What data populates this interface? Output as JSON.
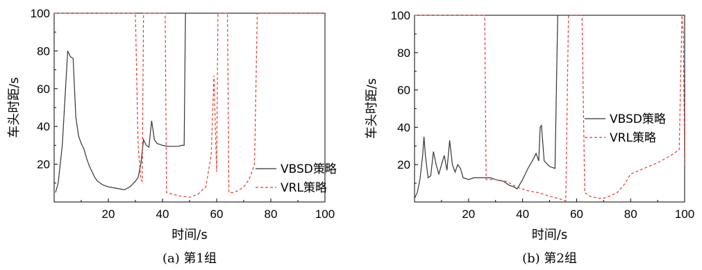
{
  "colors": {
    "vbsd": "#333333",
    "vrl": "#e8392f",
    "axis": "#000000"
  },
  "chart_data": [
    {
      "type": "line",
      "caption": "(a) 第1组",
      "xlabel": "时间/s",
      "ylabel": "车头时距/s",
      "xlim": [
        0,
        100
      ],
      "ylim": [
        0,
        100
      ],
      "xticks": [
        "20",
        "40",
        "60",
        "80",
        "100"
      ],
      "yticks": [
        "20",
        "40",
        "60",
        "80",
        "100"
      ],
      "legend": "bottom-right",
      "series": [
        {
          "name": "VBSD策略",
          "style": "solid",
          "x": [
            0.5,
            1.5,
            3,
            5,
            6,
            7,
            8,
            9,
            10,
            11,
            12,
            13,
            14,
            15,
            16,
            18,
            20,
            22,
            24,
            26,
            28,
            30,
            31,
            32,
            33,
            34,
            35,
            35.5,
            36,
            37,
            38,
            40,
            42,
            44,
            46,
            47,
            48,
            48.5,
            50,
            60,
            70,
            80,
            90,
            100
          ],
          "y": [
            5,
            10,
            30,
            80,
            77,
            76,
            45,
            35,
            31,
            28,
            23,
            19,
            16,
            13,
            11,
            9,
            8,
            7.5,
            7,
            6.5,
            8,
            11,
            13,
            20,
            33,
            30,
            29,
            36,
            43,
            33,
            31,
            30,
            29.5,
            29.5,
            29.5,
            30,
            30,
            100,
            100,
            100,
            100,
            100,
            100,
            100
          ]
        },
        {
          "name": "VRL策略",
          "style": "dashed",
          "x": [
            0,
            30,
            31,
            32,
            32.5,
            33,
            40,
            41,
            41.5,
            44,
            47,
            50,
            53,
            56,
            58,
            59,
            60,
            60.5,
            61,
            62,
            63,
            64,
            64.5,
            66,
            68,
            70,
            72,
            74,
            75,
            76,
            100
          ],
          "y": [
            100,
            100,
            30,
            12,
            11,
            100,
            100,
            100,
            5,
            4,
            3,
            2.5,
            4,
            8,
            25,
            67,
            16,
            100,
            100,
            100,
            100,
            100,
            5,
            5,
            6,
            8,
            12,
            20,
            100,
            100,
            100
          ]
        }
      ]
    },
    {
      "type": "line",
      "caption": "(b) 第2组",
      "xlabel": "时间/s",
      "ylabel": "车头时距/s",
      "xlim": [
        0,
        100
      ],
      "ylim": [
        0,
        100
      ],
      "xticks": [
        "20",
        "40",
        "60",
        "80",
        "100"
      ],
      "yticks": [
        "20",
        "40",
        "60",
        "80",
        "100"
      ],
      "legend": "right",
      "series": [
        {
          "name": "VBSD策略",
          "style": "solid",
          "x": [
            0,
            1,
            2,
            3,
            3.5,
            4,
            5,
            6,
            7,
            8,
            9,
            10,
            11,
            12,
            13,
            14,
            15,
            16,
            17,
            18,
            20,
            22,
            25,
            28,
            30,
            33,
            35,
            37,
            38,
            40,
            42,
            44,
            45,
            46,
            46.5,
            47,
            48,
            50,
            52,
            53,
            60,
            70,
            80,
            90,
            100
          ],
          "y": [
            2,
            5,
            12,
            25,
            35,
            25,
            13,
            14,
            27,
            20,
            15,
            20,
            25,
            17,
            33,
            20,
            16,
            20,
            18,
            13,
            12,
            13,
            13,
            13,
            12,
            11,
            9,
            8,
            7,
            12,
            18,
            23,
            26,
            22,
            40,
            41,
            22,
            19,
            18,
            100,
            100,
            100,
            100,
            100,
            100
          ]
        },
        {
          "name": "VRL策略",
          "style": "dashed",
          "x": [
            0,
            26,
            26.5,
            27,
            30,
            34,
            38,
            42,
            46,
            50,
            53,
            55,
            56,
            57,
            61,
            62,
            63,
            65,
            68,
            70,
            72,
            75,
            78,
            80,
            85,
            90,
            95,
            98,
            99,
            99.5,
            100
          ],
          "y": [
            100,
            100,
            12,
            12,
            12,
            11,
            8,
            6,
            5,
            3,
            2,
            1,
            0.5,
            100,
            100,
            100,
            5,
            3,
            2,
            2,
            3,
            5,
            10,
            15,
            18,
            21,
            25,
            28,
            100,
            90,
            20
          ]
        }
      ]
    }
  ]
}
